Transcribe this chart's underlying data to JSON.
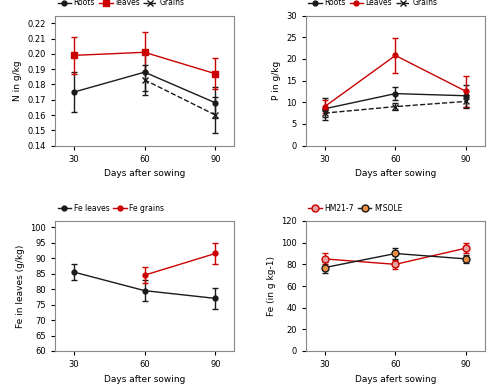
{
  "days": [
    30,
    60,
    90
  ],
  "N_roots": [
    0.175,
    0.188,
    0.168
  ],
  "N_roots_err": [
    0.013,
    0.012,
    0.01
  ],
  "N_leaves": [
    0.199,
    0.201,
    0.187
  ],
  "N_leaves_err": [
    0.012,
    0.013,
    0.01
  ],
  "N_grains_days": [
    60,
    90
  ],
  "N_grains": [
    0.183,
    0.16
  ],
  "N_grains_err": [
    0.01,
    0.012
  ],
  "N_ylim": [
    0.14,
    0.225
  ],
  "N_yticks": [
    0.14,
    0.15,
    0.16,
    0.17,
    0.18,
    0.19,
    0.2,
    0.21,
    0.22
  ],
  "N_ylabel": "N in g/kg",
  "P_roots": [
    8.5,
    12.0,
    11.5
  ],
  "P_roots_err": [
    2.5,
    1.5,
    2.5
  ],
  "P_leaves": [
    9.0,
    20.8,
    12.5
  ],
  "P_leaves_err": [
    1.5,
    4.0,
    3.5
  ],
  "P_grains": [
    7.5,
    9.0,
    10.2
  ],
  "P_grains_err": [
    1.0,
    0.8,
    1.5
  ],
  "P_ylim": [
    0,
    30
  ],
  "P_yticks": [
    0,
    5,
    10,
    15,
    20,
    25,
    30
  ],
  "P_ylabel": "P in g/kg",
  "Fe_leaves_vals": [
    85.5,
    79.5,
    77.0
  ],
  "Fe_leaves_err": [
    2.5,
    3.5,
    3.5
  ],
  "Fe_grains_days": [
    60,
    90
  ],
  "Fe_grains_vals": [
    84.5,
    91.5
  ],
  "Fe_grains_err": [
    2.5,
    3.5
  ],
  "Fe_ylim": [
    60,
    102
  ],
  "Fe_yticks": [
    60,
    65,
    70,
    75,
    80,
    85,
    90,
    95,
    100
  ],
  "Fe_ylabel": "Fe in leaves (g/kg)",
  "Fe2_hm217": [
    85,
    80,
    95
  ],
  "Fe2_hm217_err": [
    5,
    4,
    5
  ],
  "Fe2_msole": [
    77,
    90,
    85
  ],
  "Fe2_msole_err": [
    5,
    5,
    4
  ],
  "Fe2_ylim": [
    0,
    120
  ],
  "Fe2_yticks": [
    0,
    20,
    40,
    60,
    80,
    100,
    120
  ],
  "Fe2_ylabel": "Fe (in g kg-1)",
  "color_black": "#1a1a1a",
  "color_red": "#cc0000",
  "color_gray": "#888888",
  "color_hm217_face": "#e8a0a0",
  "color_msole_face": "#e89040",
  "xlabel": "Days after sowing",
  "xlabel_Fe2": "Days afert sowing"
}
